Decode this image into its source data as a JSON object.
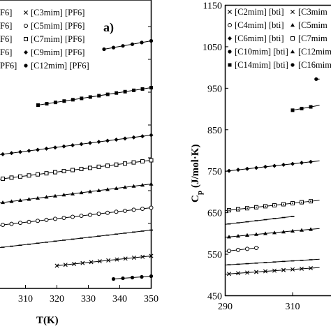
{
  "chart_data": [
    {
      "type": "line",
      "panel_label": "a)",
      "xlabel": "T(K)",
      "ylabel": "",
      "xlim": [
        300,
        350
      ],
      "x_ticks": [
        "310",
        "320",
        "330",
        "340",
        "350"
      ],
      "legend": {
        "placement": "top",
        "left_column": [
          "F6]",
          "F6]",
          "F6]",
          "F6]",
          "PF6]"
        ],
        "right_column": [
          "[C3mim] [PF6]",
          "[C5mim] [PF6]",
          "[C7mim] [PF6]",
          "[C9mim] [PF6]",
          "[C12mim] [PF6]"
        ]
      },
      "series": [
        {
          "name": "",
          "marker": "dot",
          "x": [
            338,
            350
          ],
          "values": [
            399.5,
            395.5
          ]
        },
        {
          "name": "[C3mim] [PF6]",
          "marker": "x",
          "x": [
            320,
            350
          ],
          "values": [
            380.5,
            366.5
          ]
        },
        {
          "name": "",
          "marker": "dash",
          "x": [
            300,
            350
          ],
          "values": [
            355.5,
            329.5
          ]
        },
        {
          "name": "[C5mim] [PF6]",
          "marker": "circle",
          "x": [
            300,
            350
          ],
          "values": [
            323.5,
            297.5
          ]
        },
        {
          "name": "",
          "marker": "triangle",
          "x": [
            300,
            350
          ],
          "values": [
            291.5,
            263.5
          ]
        },
        {
          "name": "[C7mim] [PF6]",
          "marker": "square",
          "x": [
            300,
            350
          ],
          "values": [
            257.5,
            229.5
          ]
        },
        {
          "name": "[C9mim] [PF6]",
          "marker": "diamond",
          "x": [
            300,
            350
          ],
          "values": [
            222.5,
            193.5
          ]
        },
        {
          "name": "",
          "marker": "square-filled",
          "x": [
            314,
            350
          ],
          "values": [
            150.5,
            125.5
          ]
        },
        {
          "name": "[C12mim] [PF6]",
          "marker": "dot",
          "x": [
            335,
            350
          ],
          "values": [
            70.5,
            58.5
          ]
        }
      ]
    },
    {
      "type": "line",
      "xlabel": "",
      "ylabel": "C",
      "ylabel_sub": "p",
      "ylabel_unit": "(J/mol·K)",
      "ylim": [
        450,
        1150
      ],
      "y_ticks": [
        "450",
        "550",
        "650",
        "750",
        "850",
        "950",
        "1050",
        "1150"
      ],
      "x_ticks": [
        "290",
        "310"
      ],
      "legend": {
        "placement": "top",
        "left_column": [
          "[C2mim] [bti]",
          "[C4mim] [bti]",
          "[C6mim] [bti]",
          "[C10mim] [bti]",
          "[C14mim] [bti]"
        ],
        "right_column": [
          "[C3mim",
          "[C5mim",
          "[C7mim",
          "[C12mim",
          "[C16mim"
        ]
      },
      "series": [
        {
          "name": "[C2mim] [bti]",
          "marker": "x",
          "x": [
            290,
            318
          ],
          "values": [
            502,
            518
          ]
        },
        {
          "name": "",
          "marker": "dash",
          "x": [
            290,
            318
          ],
          "values": [
            524,
            538
          ]
        },
        {
          "name": "[C4mim] [bti]",
          "marker": "circle",
          "x": [
            290,
            300
          ],
          "values": [
            557,
            566
          ]
        },
        {
          "name": "[C12mim",
          "marker": "triangle",
          "x": [
            290,
            318
          ],
          "values": [
            591,
            612
          ]
        },
        {
          "name": "",
          "marker": "dash",
          "x": [
            290,
            310
          ],
          "values": [
            622,
            641
          ]
        },
        {
          "name": "[C6mim] [bti]",
          "marker": "square-dot",
          "x": [
            290,
            318
          ],
          "values": [
            655,
            680
          ]
        },
        {
          "name": "[C10mim] [bti]",
          "marker": "diamond",
          "x": [
            290,
            318
          ],
          "values": [
            750,
            775
          ]
        },
        {
          "name": "[C14mim] [bti]",
          "marker": "square-filled",
          "x": [
            310,
            318
          ],
          "values": [
            897,
            909
          ]
        },
        {
          "name": "[C16mim",
          "marker": "dot",
          "x": [
            317,
            318
          ],
          "values": [
            972,
            972
          ]
        }
      ]
    }
  ],
  "icons": {
    "x": "cross-marker-icon",
    "circle": "open-circle-marker-icon",
    "square": "open-square-marker-icon",
    "diamond": "diamond-marker-icon",
    "dot": "filled-circle-marker-icon",
    "triangle": "triangle-marker-icon",
    "square-filled": "filled-square-marker-icon"
  }
}
